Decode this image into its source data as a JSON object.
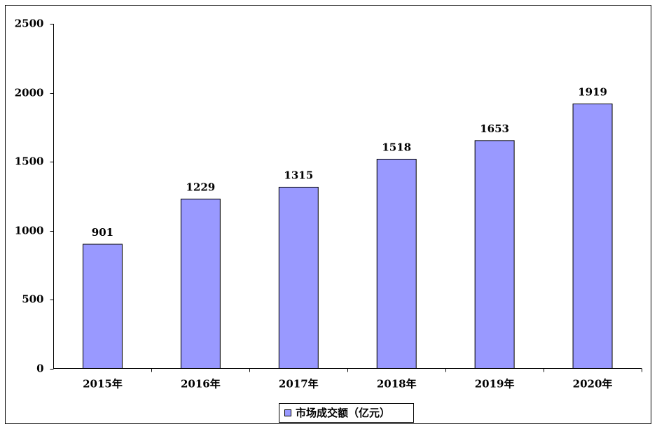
{
  "chart_data": {
    "type": "bar",
    "categories": [
      "2015年",
      "2016年",
      "2017年",
      "2018年",
      "2019年",
      "2020年"
    ],
    "series": [
      {
        "name": "市场成交额（亿元）",
        "color": "#9999ff",
        "values": [
          901,
          1229,
          1315,
          1518,
          1653,
          1919
        ]
      }
    ],
    "ylim": [
      0,
      2500
    ],
    "yticks": [
      0,
      500,
      1000,
      1500,
      2000,
      2500
    ],
    "grid": false,
    "legend": "bottom"
  }
}
